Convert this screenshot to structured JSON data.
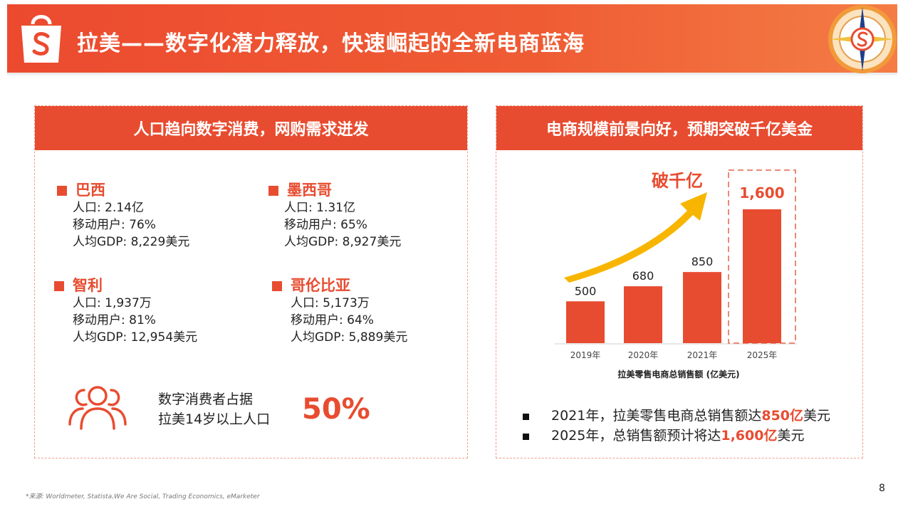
{
  "header": {
    "title": "拉美——数字化潜力释放，快速崛起的全新电商蓝海",
    "logo_icon": "shopping-bag-icon",
    "compass_icon": "compass-icon",
    "accent": "#e84c30"
  },
  "left_panel": {
    "heading": "人口趋向数字消费，网购需求迸发",
    "countries": [
      {
        "name": "巴西",
        "population": "人口: 2.14亿",
        "mobile": "移动用户: 76%",
        "gdp": "人均GDP: 8,229美元"
      },
      {
        "name": "墨西哥",
        "population": "人口: 1.31亿",
        "mobile": "移动用户: 65%",
        "gdp": "人均GDP: 8,927美元"
      },
      {
        "name": "智利",
        "population": "人口: 1,937万",
        "mobile": "移动用户: 81%",
        "gdp": "人均GDP: 12,954美元"
      },
      {
        "name": "哥伦比亚",
        "population": "人口: 5,173万",
        "mobile": "移动用户: 64%",
        "gdp": "人均GDP: 5,889美元"
      }
    ],
    "stat_line1": "数字消费者占据",
    "stat_line2": "拉美14岁以上人口",
    "stat_value": "50%",
    "stat_icon": "people-group-icon"
  },
  "right_panel": {
    "heading": "电商规模前景向好，预期突破千亿美金",
    "arrow_label": "破千亿",
    "bullets": [
      {
        "pre": "2021年，拉美零售电商总销售额达",
        "hl": "850亿",
        "post": "美元"
      },
      {
        "pre": "2025年，总销售额预计将达",
        "hl": "1,600亿",
        "post": "美元"
      }
    ]
  },
  "chart_data": {
    "type": "bar",
    "categories": [
      "2019年",
      "2020年",
      "2021年",
      "2025年"
    ],
    "values": [
      500,
      680,
      850,
      1600
    ],
    "value_labels": [
      "500",
      "680",
      "850",
      "1,600"
    ],
    "xlabel": "拉美零售电商总销售额 (亿美元)",
    "ylabel": "",
    "ylim": [
      0,
      1600
    ],
    "highlight_index": 3,
    "bar_color": "#e84c30",
    "arrow_color": "#f8b500"
  },
  "footer": {
    "source": "*来源: Worldmeter, Statista,We Are Social, Trading Economics, eMarketer",
    "page": "8"
  }
}
